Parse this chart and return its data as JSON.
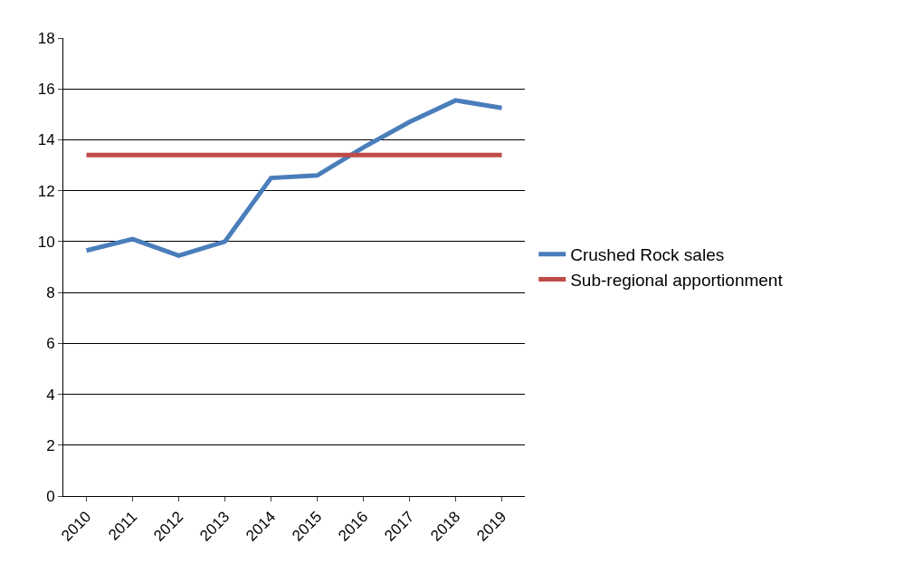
{
  "chart_data": {
    "type": "line",
    "categories": [
      "2010",
      "2011",
      "2012",
      "2013",
      "2014",
      "2015",
      "2016",
      "2017",
      "2018",
      "2019"
    ],
    "series": [
      {
        "name": "Crushed Rock sales",
        "color": "#4a7ebb",
        "values": [
          9.65,
          10.1,
          9.45,
          10.0,
          12.5,
          12.6,
          13.7,
          14.7,
          15.55,
          15.25
        ]
      },
      {
        "name": "Sub-regional apportionment",
        "color": "#be4b48",
        "values": [
          13.4,
          13.4,
          13.4,
          13.4,
          13.4,
          13.4,
          13.4,
          13.4,
          13.4,
          13.4
        ]
      }
    ],
    "ylim": [
      0,
      18
    ],
    "yticks": [
      0,
      2,
      4,
      6,
      8,
      10,
      12,
      14,
      16,
      18
    ],
    "grid": "y",
    "legend": "right",
    "marker": "none",
    "line_style": "solid"
  }
}
